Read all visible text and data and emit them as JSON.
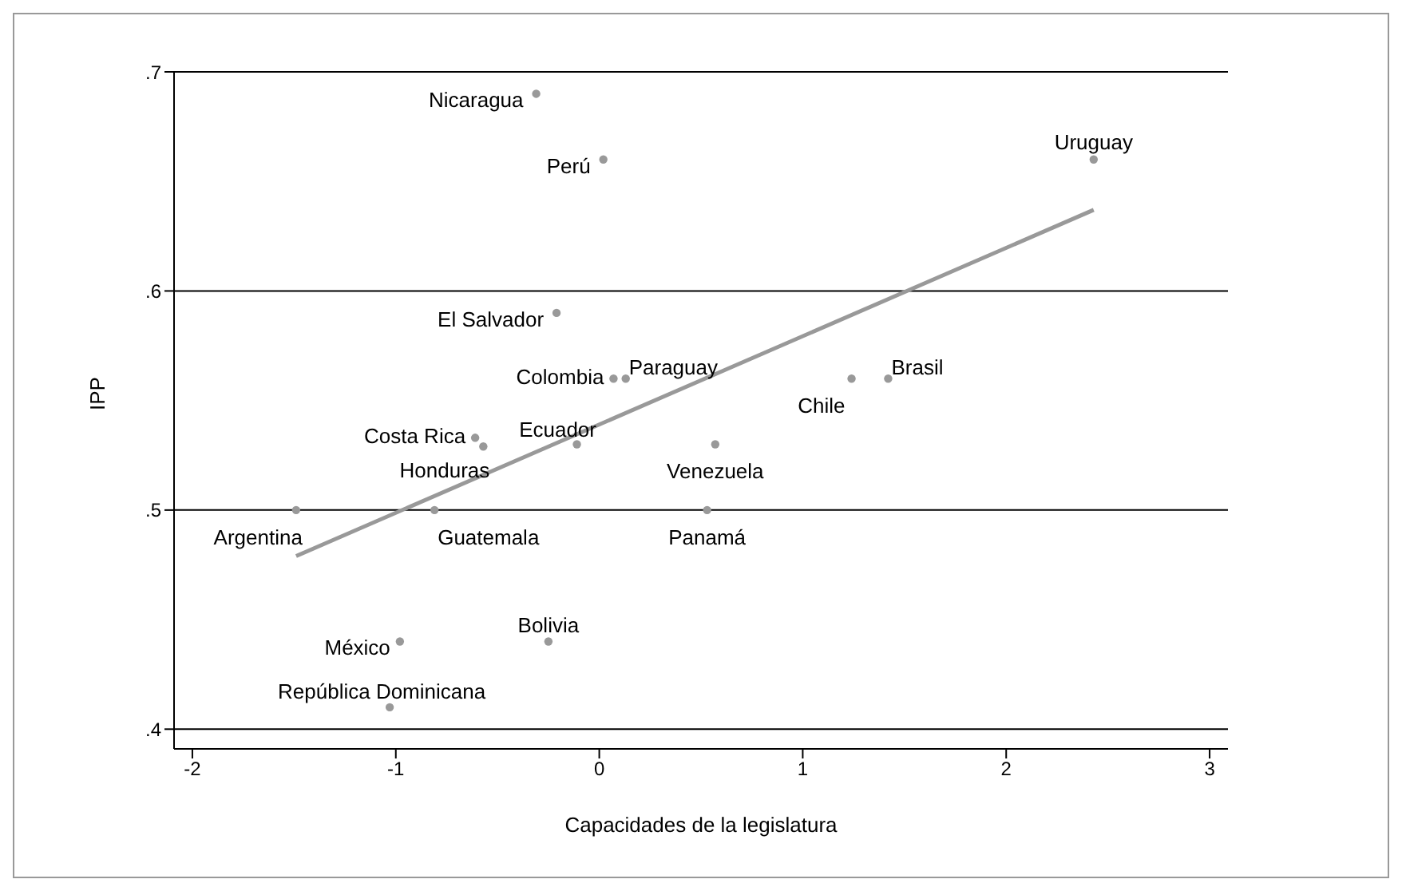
{
  "chart_data": {
    "type": "scatter",
    "xlabel": "Capacidades de la legislatura",
    "ylabel": "IPP",
    "xlim": [
      -2.09,
      3.09
    ],
    "ylim": [
      0.391,
      0.7
    ],
    "xticks": [
      -2,
      -1,
      0,
      1,
      2,
      3
    ],
    "yticks": [
      {
        "value": 0.4,
        "label": ".4"
      },
      {
        "value": 0.5,
        "label": ".5"
      },
      {
        "value": 0.6,
        "label": ".6"
      },
      {
        "value": 0.7,
        "label": ".7"
      }
    ],
    "grid": "y",
    "legend": false,
    "marker": "circle",
    "series": [
      {
        "color": "#999999",
        "x": [
          -0.31,
          0.02,
          2.43,
          -0.21,
          0.07,
          0.13,
          1.24,
          1.42,
          -0.61,
          -0.57,
          -0.11,
          0.57,
          -1.49,
          -0.81,
          0.53,
          -0.98,
          -0.25,
          -1.03
        ],
        "values": [
          0.69,
          0.66,
          0.66,
          0.59,
          0.56,
          0.56,
          0.56,
          0.56,
          0.533,
          0.529,
          0.53,
          0.53,
          0.5,
          0.5,
          0.5,
          0.44,
          0.44,
          0.41
        ]
      },
      {
        "type": "line",
        "color": "#999999",
        "marker": "none",
        "x": [
          -1.49,
          2.43
        ],
        "values": [
          0.479,
          0.637
        ]
      }
    ],
    "annotations": [
      {
        "text": "Nicaragua",
        "x": -0.31,
        "y": 0.69
      },
      {
        "text": "Perú",
        "x": 0.02,
        "y": 0.66
      },
      {
        "text": "Uruguay",
        "x": 2.43,
        "y": 0.66
      },
      {
        "text": "El Salvador",
        "x": -0.21,
        "y": 0.59
      },
      {
        "text": "Colombia",
        "x": 0.07,
        "y": 0.56
      },
      {
        "text": "Paraguay",
        "x": 0.13,
        "y": 0.56
      },
      {
        "text": "Chile",
        "x": 1.24,
        "y": 0.56
      },
      {
        "text": "Brasil",
        "x": 1.42,
        "y": 0.56
      },
      {
        "text": "Costa Rica",
        "x": -0.61,
        "y": 0.533
      },
      {
        "text": "Honduras",
        "x": -0.57,
        "y": 0.529
      },
      {
        "text": "Ecuador",
        "x": -0.11,
        "y": 0.53
      },
      {
        "text": "Venezuela",
        "x": 0.57,
        "y": 0.53
      },
      {
        "text": "Argentina",
        "x": -1.49,
        "y": 0.5
      },
      {
        "text": "Guatemala",
        "x": -0.81,
        "y": 0.5
      },
      {
        "text": "Panamá",
        "x": 0.53,
        "y": 0.5
      },
      {
        "text": "México",
        "x": -0.98,
        "y": 0.44
      },
      {
        "text": "Bolivia",
        "x": -0.25,
        "y": 0.44
      },
      {
        "text": "República Dominicana",
        "x": -1.03,
        "y": 0.41
      }
    ]
  }
}
